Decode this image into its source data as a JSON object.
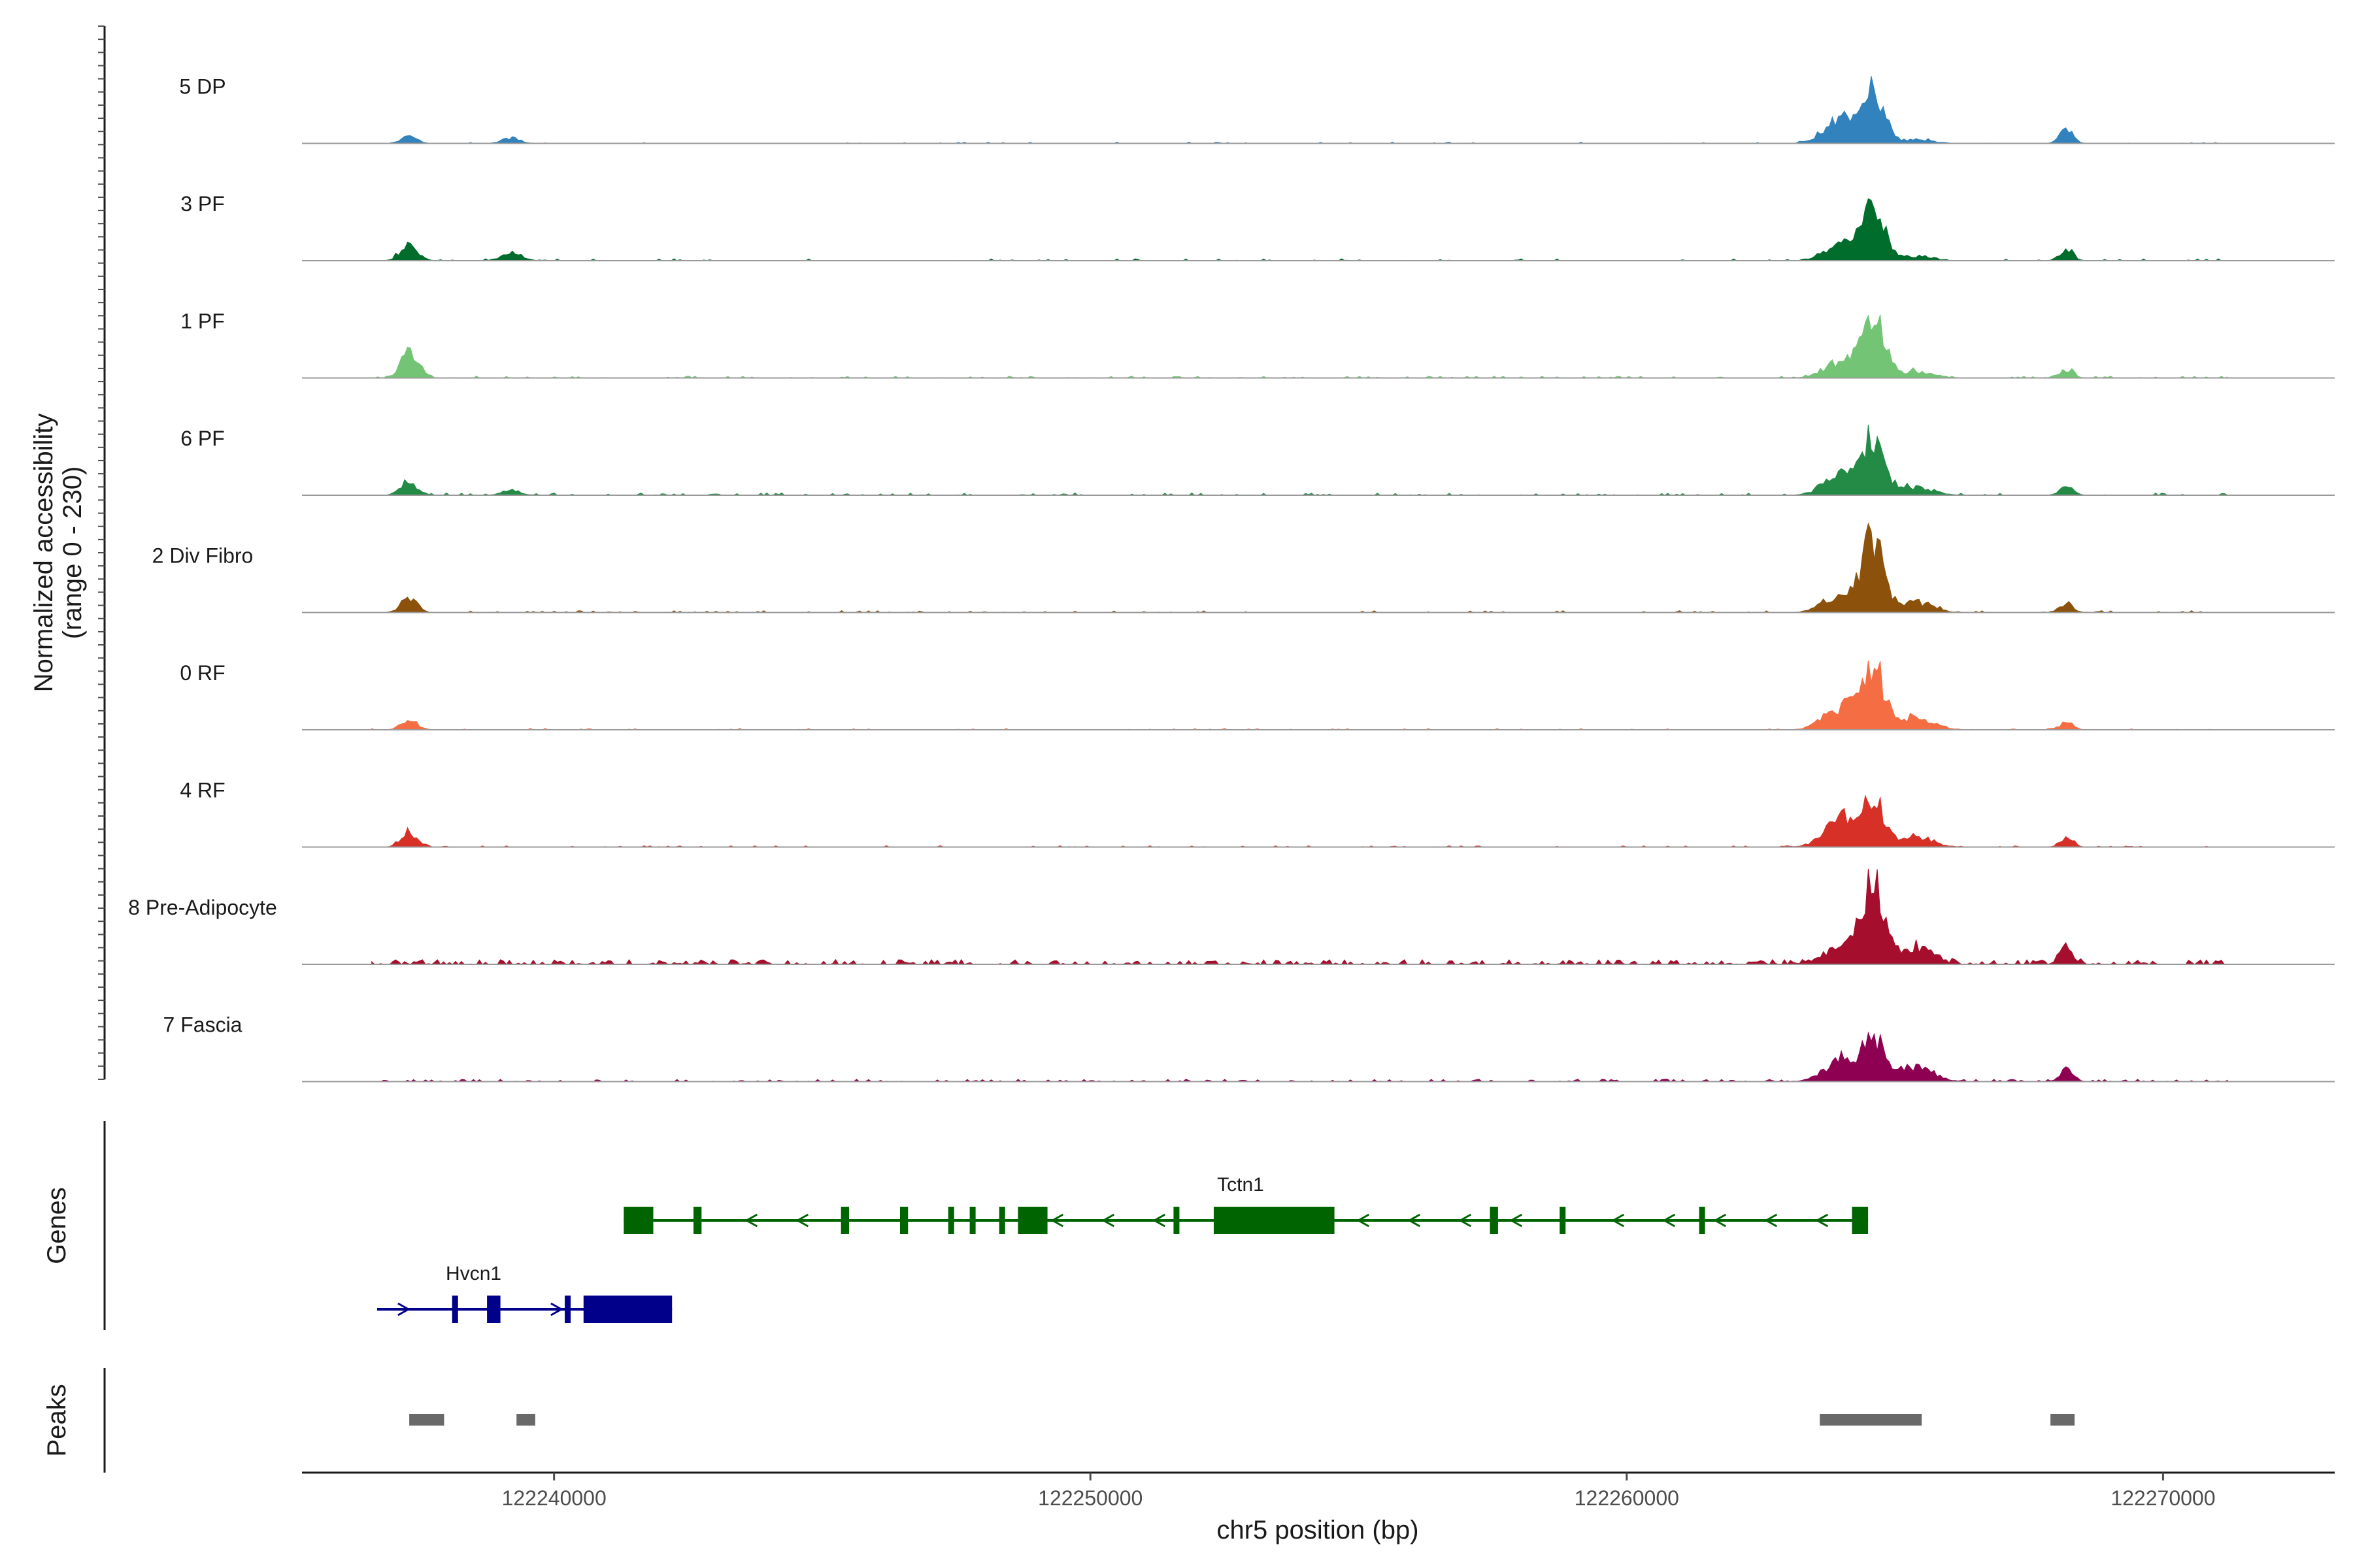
{
  "chart_data": {
    "type": "area",
    "ylabel_line1": "Normalized accessibility",
    "ylabel_line2": "(range 0 - 230)",
    "xlabel": "chr5 position (bp)",
    "xlim": [
      122235300,
      122273200
    ],
    "ylim": [
      0,
      230
    ],
    "x_ticks": [
      122240000,
      122250000,
      122260000,
      122270000
    ],
    "x_tick_labels": [
      "122240000",
      "122250000",
      "122260000",
      "122270000"
    ],
    "track_range_start": 122236600,
    "track_range_end": 122271200,
    "tracks": [
      {
        "name": "5 DP",
        "color": "#3182bd",
        "noise": 3,
        "speckle": 0.12,
        "peaks": [
          [
            122237300,
            150,
            16
          ],
          [
            122239200,
            160,
            12
          ],
          [
            122264000,
            300,
            60
          ],
          [
            122264600,
            200,
            106
          ],
          [
            122265400,
            300,
            8
          ],
          [
            122268200,
            120,
            32
          ]
        ]
      },
      {
        "name": "3 PF",
        "color": "#006d2c",
        "noise": 4,
        "speckle": 0.15,
        "peaks": [
          [
            122237300,
            150,
            40
          ],
          [
            122239200,
            180,
            18
          ],
          [
            122264000,
            300,
            38
          ],
          [
            122264600,
            200,
            118
          ],
          [
            122265400,
            300,
            10
          ],
          [
            122268200,
            120,
            26
          ]
        ]
      },
      {
        "name": "1 PF",
        "color": "#74c476",
        "noise": 4,
        "speckle": 0.25,
        "peaks": [
          [
            122237300,
            150,
            64
          ],
          [
            122264000,
            300,
            36
          ],
          [
            122264600,
            200,
            126
          ],
          [
            122265400,
            300,
            14
          ],
          [
            122268200,
            120,
            20
          ]
        ]
      },
      {
        "name": "6 PF",
        "color": "#238b45",
        "noise": 5,
        "speckle": 0.25,
        "peaks": [
          [
            122237300,
            150,
            30
          ],
          [
            122239200,
            180,
            10
          ],
          [
            122264000,
            300,
            44
          ],
          [
            122264600,
            200,
            118
          ],
          [
            122265400,
            300,
            18
          ],
          [
            122268200,
            120,
            20
          ]
        ]
      },
      {
        "name": "2 Div Fibro",
        "color": "#8c510a",
        "noise": 4,
        "speckle": 0.2,
        "peaks": [
          [
            122237300,
            150,
            30
          ],
          [
            122264000,
            300,
            40
          ],
          [
            122264600,
            200,
            154
          ],
          [
            122265400,
            300,
            22
          ],
          [
            122268200,
            120,
            20
          ]
        ]
      },
      {
        "name": "0 RF",
        "color": "#f46d43",
        "noise": 3,
        "speckle": 0.12,
        "peaks": [
          [
            122237300,
            150,
            20
          ],
          [
            122264000,
            300,
            50
          ],
          [
            122264600,
            200,
            130
          ],
          [
            122265400,
            300,
            26
          ],
          [
            122268200,
            120,
            16
          ]
        ]
      },
      {
        "name": "4 RF",
        "color": "#d73027",
        "noise": 3,
        "speckle": 0.15,
        "peaks": [
          [
            122237300,
            150,
            32
          ],
          [
            122264000,
            300,
            60
          ],
          [
            122264600,
            200,
            100
          ],
          [
            122265400,
            300,
            22
          ],
          [
            122268200,
            120,
            20
          ]
        ]
      },
      {
        "name": "8 Pre-Adipocyte",
        "color": "#a50f2d",
        "noise": 10,
        "speckle": 0.45,
        "peaks": [
          [
            122264000,
            300,
            40
          ],
          [
            122264600,
            200,
            168
          ],
          [
            122265400,
            300,
            36
          ],
          [
            122268200,
            120,
            36
          ]
        ]
      },
      {
        "name": "7 Fascia",
        "color": "#8e0152",
        "noise": 5,
        "speckle": 0.3,
        "peaks": [
          [
            122264000,
            300,
            48
          ],
          [
            122264600,
            200,
            94
          ],
          [
            122265400,
            300,
            34
          ],
          [
            122268200,
            120,
            26
          ]
        ]
      }
    ]
  },
  "genes_panel": {
    "label": "Genes",
    "genes": [
      {
        "name": "Tctn1",
        "color": "#006400",
        "strand": "-",
        "row": 0,
        "start": 122241300,
        "end": 122264500,
        "label_pos": 122252800,
        "exons": [
          [
            122241300,
            122241850
          ],
          [
            122242600,
            122242750
          ],
          [
            122245350,
            122245500
          ],
          [
            122246450,
            122246600
          ],
          [
            122247350,
            122247400
          ],
          [
            122247750,
            122247850
          ],
          [
            122248300,
            122248400
          ],
          [
            122248650,
            122249200
          ],
          [
            122251550,
            122251650
          ],
          [
            122252300,
            122254550
          ],
          [
            122257450,
            122257600
          ],
          [
            122258750,
            122258850
          ],
          [
            122261350,
            122261450
          ],
          [
            122264200,
            122264500
          ]
        ]
      },
      {
        "name": "Hvcn1",
        "color": "#00008b",
        "strand": "+",
        "row": 1,
        "start": 122236700,
        "end": 122242200,
        "label_pos": 122238500,
        "exons": [
          [
            122238100,
            122238200
          ],
          [
            122238750,
            122239000
          ],
          [
            122240200,
            122240300
          ],
          [
            122240550,
            122242200
          ]
        ]
      }
    ]
  },
  "peaks_panel": {
    "label": "Peaks",
    "color": "#696969",
    "regions": [
      [
        122237300,
        122237950
      ],
      [
        122239300,
        122239650
      ],
      [
        122263600,
        122265500
      ],
      [
        122267900,
        122268350
      ]
    ]
  }
}
